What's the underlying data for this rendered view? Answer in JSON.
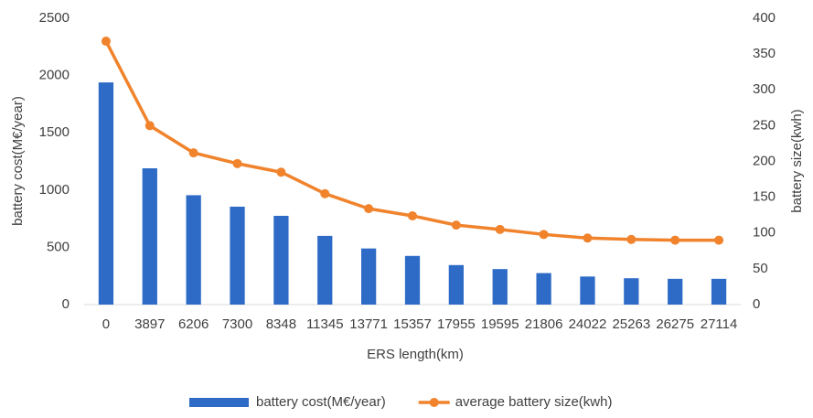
{
  "chart_data": {
    "type": "combo",
    "xlabel": "ERS length(km)",
    "ylabel": "battery cost(M€/year)",
    "y2label": "battery size(kwh)",
    "categories": [
      "0",
      "3897",
      "6206",
      "7300",
      "8348",
      "11345",
      "13771",
      "15357",
      "17955",
      "19595",
      "21806",
      "24022",
      "25263",
      "26275",
      "27114"
    ],
    "series": [
      {
        "name": "battery cost(M€/year)",
        "type": "bar",
        "color": "#2e6bc6",
        "values": [
          1940,
          1190,
          955,
          855,
          775,
          600,
          490,
          425,
          345,
          310,
          275,
          245,
          230,
          225,
          225
        ]
      },
      {
        "name": "average battery size(kwh)",
        "type": "line",
        "color": "#f0832c",
        "axis": "y2",
        "values": [
          368,
          250,
          212,
          197,
          185,
          155,
          134,
          124,
          111,
          105,
          98,
          93,
          91,
          90,
          90
        ]
      }
    ],
    "ylim": [
      0,
      2500
    ],
    "yticks": [
      0,
      500,
      1000,
      1500,
      2000,
      2500
    ],
    "y2lim": [
      0,
      400
    ],
    "y2ticks": [
      0,
      50,
      100,
      150,
      200,
      250,
      300,
      350,
      400
    ],
    "grid": false,
    "legend": "bottom"
  }
}
